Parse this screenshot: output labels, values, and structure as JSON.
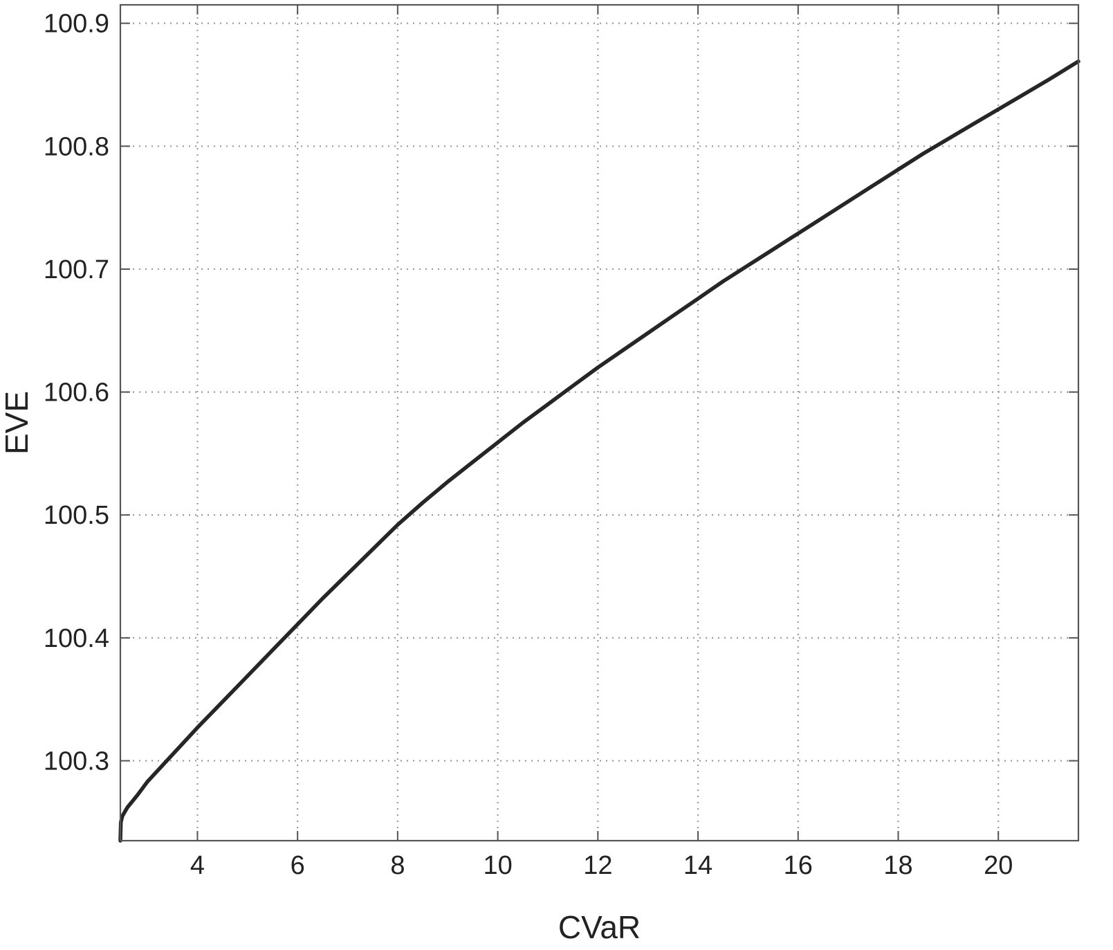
{
  "chart_data": {
    "type": "line",
    "title": "",
    "xlabel": "CVaR",
    "ylabel": "EVE",
    "xlim": [
      2.46,
      21.6
    ],
    "ylim": [
      100.235,
      100.915
    ],
    "xticks": [
      4,
      6,
      8,
      10,
      12,
      14,
      16,
      18,
      20
    ],
    "xtick_labels": [
      "4",
      "6",
      "8",
      "10",
      "12",
      "14",
      "16",
      "18",
      "20"
    ],
    "yticks": [
      100.3,
      100.4,
      100.5,
      100.6,
      100.7,
      100.8,
      100.9
    ],
    "ytick_labels": [
      "100.3",
      "100.4",
      "100.5",
      "100.6",
      "100.7",
      "100.8",
      "100.9"
    ],
    "grid": true,
    "legend": "none",
    "series": [
      {
        "color": "#262626",
        "x": [
          2.46,
          2.47,
          2.5,
          2.6,
          2.8,
          3.0,
          3.5,
          4.0,
          4.5,
          5.0,
          5.5,
          6.0,
          6.5,
          7.0,
          7.5,
          8.0,
          8.5,
          9.0,
          9.5,
          10.0,
          10.5,
          11.0,
          11.5,
          12.0,
          12.5,
          13.0,
          13.5,
          14.0,
          14.5,
          15.0,
          15.5,
          16.0,
          16.5,
          17.0,
          17.5,
          18.0,
          18.5,
          19.0,
          19.5,
          20.0,
          20.5,
          21.0,
          21.6
        ],
        "y": [
          100.235,
          100.25,
          100.255,
          100.262,
          100.272,
          100.283,
          100.305,
          100.327,
          100.348,
          100.369,
          100.39,
          100.411,
          100.432,
          100.452,
          100.472,
          100.492,
          100.51,
          100.527,
          100.543,
          100.559,
          100.575,
          100.59,
          100.605,
          100.62,
          100.634,
          100.648,
          100.662,
          100.676,
          100.69,
          100.703,
          100.716,
          100.729,
          100.742,
          100.755,
          100.768,
          100.781,
          100.794,
          100.806,
          100.818,
          100.83,
          100.842,
          100.854,
          100.869
        ]
      }
    ]
  }
}
